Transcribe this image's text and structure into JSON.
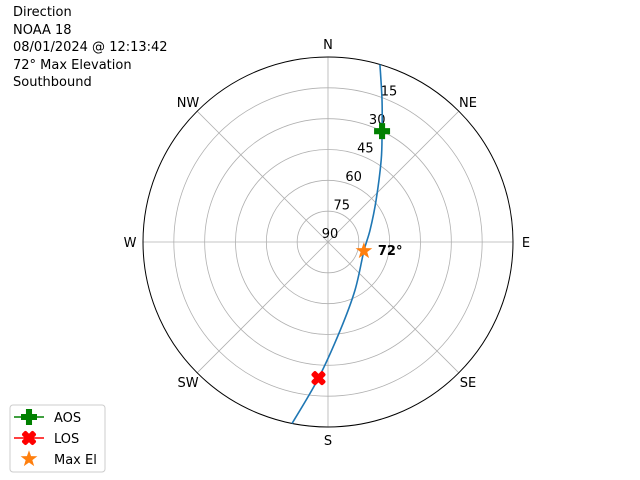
{
  "title_lines": [
    "Direction",
    "NOAA 18",
    "08/01/2024 @ 12:13:42",
    "72° Max Elevation",
    "Southbound"
  ],
  "chart_data": {
    "type": "polar",
    "theta_direction": "clockwise",
    "theta_zero": "north",
    "direction_labels": [
      {
        "label": "N",
        "az": 0
      },
      {
        "label": "NE",
        "az": 45
      },
      {
        "label": "E",
        "az": 90
      },
      {
        "label": "SE",
        "az": 135
      },
      {
        "label": "S",
        "az": 180
      },
      {
        "label": "SW",
        "az": 225
      },
      {
        "label": "W",
        "az": 270
      },
      {
        "label": "NW",
        "az": 315
      }
    ],
    "radial_axis": {
      "quantity": "elevation",
      "range": [
        0,
        90
      ],
      "ticks": [
        15,
        30,
        45,
        60,
        75,
        90
      ],
      "inverted": true
    },
    "grid": true,
    "track": {
      "color": "#1f77b4",
      "points": [
        {
          "az": 16.3,
          "el": 0
        },
        {
          "az": 20.8,
          "el": 16
        },
        {
          "az": 26,
          "el": 30
        },
        {
          "az": 33,
          "el": 42.5
        },
        {
          "az": 49,
          "el": 59
        },
        {
          "az": 74,
          "el": 68.7
        },
        {
          "az": 104,
          "el": 72
        },
        {
          "az": 150.6,
          "el": 63.2
        },
        {
          "az": 172,
          "el": 46.8
        },
        {
          "az": 184,
          "el": 23.6
        },
        {
          "az": 191.2,
          "el": 0
        }
      ]
    },
    "markers": [
      {
        "name": "AOS",
        "az": 26,
        "el": 30,
        "color": "#008000",
        "shape": "plus"
      },
      {
        "name": "LOS",
        "az": 184,
        "el": 23.6,
        "color": "#ff0000",
        "shape": "x"
      },
      {
        "name": "Max El",
        "az": 104,
        "el": 72,
        "color": "#ff7f0e",
        "shape": "star"
      }
    ],
    "annotation": {
      "text": "72°",
      "az": 104,
      "el": 72
    },
    "legend": {
      "placement": "lower-left",
      "entries": [
        "AOS",
        "LOS",
        "Max El"
      ]
    }
  }
}
